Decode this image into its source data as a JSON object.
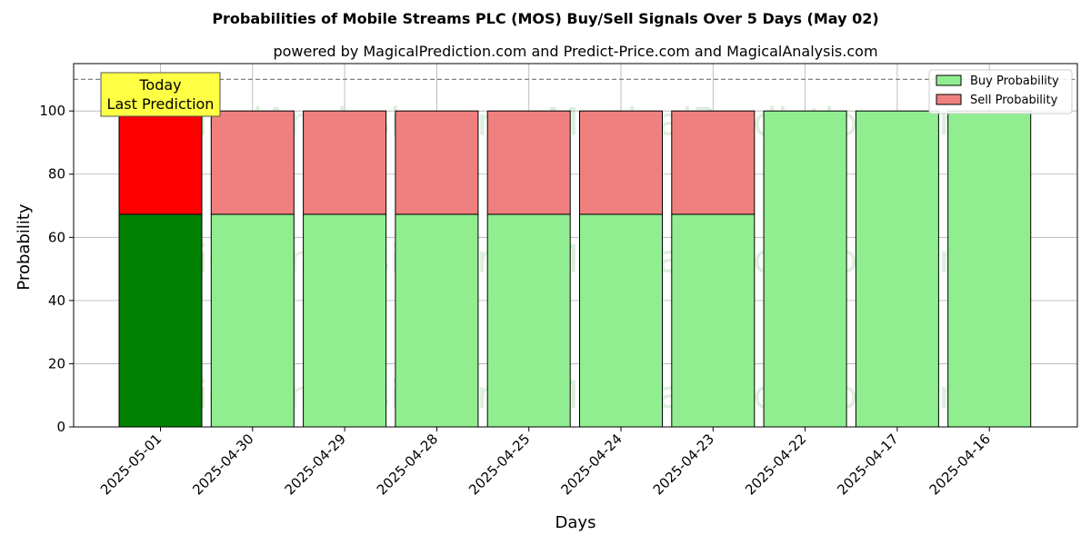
{
  "chart_data": {
    "type": "bar",
    "stacked": true,
    "title": "Probabilities of Mobile Streams PLC (MOS) Buy/Sell Signals Over 5 Days (May 02)",
    "subtitle": "powered by MagicalPrediction.com and Predict-Price.com and MagicalAnalysis.com",
    "xlabel": "Days",
    "ylabel": "Probability",
    "ylim": [
      0,
      115
    ],
    "yticks": [
      0,
      20,
      40,
      60,
      80,
      100
    ],
    "grid": true,
    "categories": [
      "2025-05-01",
      "2025-04-30",
      "2025-04-29",
      "2025-04-28",
      "2025-04-25",
      "2025-04-24",
      "2025-04-23",
      "2025-04-22",
      "2025-04-17",
      "2025-04-16"
    ],
    "series": [
      {
        "name": "Buy Probability",
        "values": [
          67.3,
          67.3,
          67.3,
          67.3,
          67.3,
          67.3,
          67.3,
          100,
          100,
          100
        ],
        "color": "#90ee90",
        "highlight_color": "#008000"
      },
      {
        "name": "Sell Probability",
        "values": [
          32.7,
          32.7,
          32.7,
          32.7,
          32.7,
          32.7,
          32.7,
          0,
          0,
          0
        ],
        "color": "#f08080",
        "highlight_color": "#ff0000"
      }
    ],
    "highlight_index": 0,
    "reference_line": 110,
    "legend": "top-right",
    "annotation": {
      "lines": [
        "Today",
        "Last Prediction"
      ],
      "background": "#ffff44"
    },
    "watermarks": [
      "MagicalAnalysis.com",
      "MagicalPrediction.com"
    ]
  }
}
